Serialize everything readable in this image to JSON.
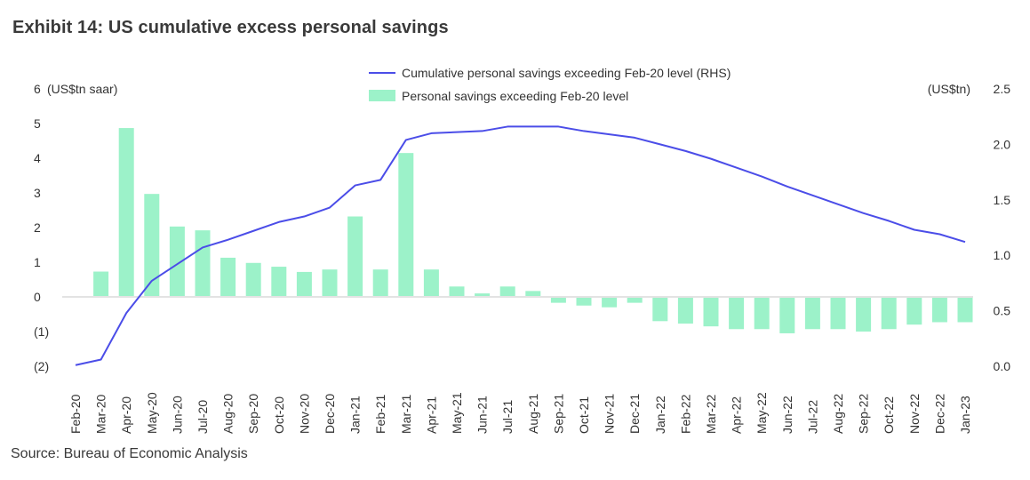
{
  "title": "Exhibit 14: US cumulative excess personal savings",
  "source": "Source: Bureau of Economic Analysis",
  "colors": {
    "line": "#4b4de8",
    "bar": "#9cf2c9",
    "axis": "#e0e0e0",
    "text": "#333333"
  },
  "chart_data": {
    "type": "bar",
    "categories": [
      "Feb-20",
      "Mar-20",
      "Apr-20",
      "May-20",
      "Jun-20",
      "Jul-20",
      "Aug-20",
      "Sep-20",
      "Oct-20",
      "Nov-20",
      "Dec-20",
      "Jan-21",
      "Feb-21",
      "Mar-21",
      "Apr-21",
      "May-21",
      "Jun-21",
      "Jul-21",
      "Aug-21",
      "Sep-21",
      "Oct-21",
      "Nov-21",
      "Dec-21",
      "Jan-22",
      "Feb-22",
      "Mar-22",
      "Apr-22",
      "May-22",
      "Jun-22",
      "Jul-22",
      "Aug-22",
      "Sep-22",
      "Oct-22",
      "Nov-22",
      "Dec-22",
      "Jan-23"
    ],
    "left_axis": {
      "label": "(US$tn saar)",
      "ylim": [
        -2,
        6
      ],
      "ticks": [
        "(2)",
        "(1)",
        "0",
        "1",
        "2",
        "3",
        "4",
        "5",
        "6"
      ]
    },
    "right_axis": {
      "label": "(US$tn)",
      "ylim": [
        0,
        2.5
      ],
      "ticks": [
        "0.0",
        "0.5",
        "1.0",
        "1.5",
        "2.0",
        "2.5"
      ]
    },
    "series": [
      {
        "name": "Personal savings exceeding Feb-20 level",
        "type": "bar",
        "axis": "left",
        "values": [
          0,
          0.73,
          4.87,
          2.97,
          2.03,
          1.92,
          1.13,
          0.98,
          0.87,
          0.72,
          0.79,
          2.32,
          0.79,
          4.15,
          0.79,
          0.3,
          0.1,
          0.3,
          0.17,
          -0.17,
          -0.25,
          -0.3,
          -0.17,
          -0.7,
          -0.77,
          -0.85,
          -0.93,
          -0.93,
          -1.05,
          -0.93,
          -0.93,
          -1,
          -0.93,
          -0.8,
          -0.73,
          -0.73
        ]
      },
      {
        "name": "Cumulative personal savings exceeding Feb-20 level (RHS)",
        "type": "line",
        "axis": "right",
        "values": [
          0.01,
          0.06,
          0.48,
          0.77,
          0.92,
          1.07,
          1.14,
          1.22,
          1.3,
          1.35,
          1.43,
          1.63,
          1.68,
          2.04,
          2.1,
          2.11,
          2.12,
          2.16,
          2.16,
          2.16,
          2.12,
          2.09,
          2.06,
          2.0,
          1.94,
          1.87,
          1.79,
          1.71,
          1.62,
          1.54,
          1.46,
          1.38,
          1.31,
          1.23,
          1.19,
          1.12
        ]
      }
    ],
    "legend_position": "top-center",
    "grid": false
  }
}
